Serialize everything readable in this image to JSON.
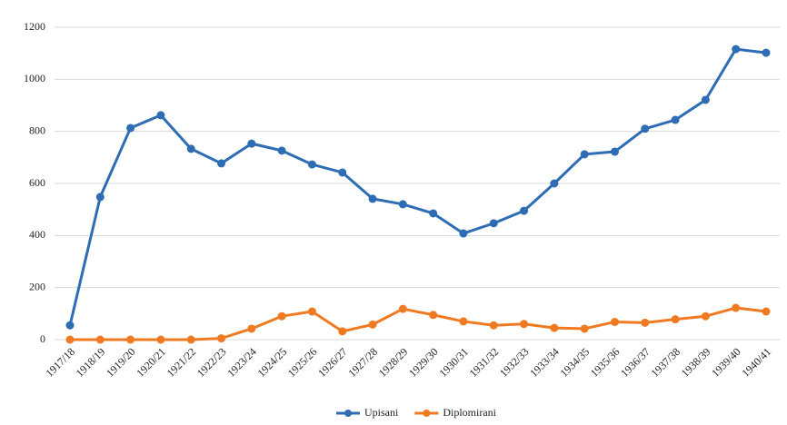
{
  "chart_data": {
    "type": "line",
    "categories": [
      "1917/18",
      "1918/19",
      "1919/20",
      "1920/21",
      "1921/22",
      "1922/23",
      "1923/24",
      "1924/25",
      "1925/26",
      "1926/27",
      "1927/28",
      "1928/29",
      "1929/30",
      "1930/31",
      "1931/32",
      "1932/33",
      "1933/34",
      "1934/35",
      "1935/36",
      "1936/37",
      "1937/38",
      "1938/39",
      "1939/40",
      "1940/41"
    ],
    "series": [
      {
        "name": "Upisani",
        "color": "#2e6db4",
        "values": [
          55,
          548,
          813,
          862,
          733,
          677,
          753,
          726,
          673,
          642,
          541,
          520,
          485,
          408,
          447,
          495,
          600,
          712,
          722,
          810,
          844,
          921,
          1116,
          1102
        ]
      },
      {
        "name": "Diplomirani",
        "color": "#f07a22",
        "values": [
          0,
          0,
          0,
          0,
          0,
          5,
          42,
          90,
          108,
          32,
          58,
          118,
          95,
          70,
          55,
          60,
          45,
          42,
          68,
          65,
          78,
          90,
          122,
          108
        ]
      }
    ],
    "ylim": [
      0,
      1200
    ],
    "yticks": [
      0,
      200,
      400,
      600,
      800,
      1000,
      1200
    ],
    "grid": true,
    "legend": "bottom"
  }
}
